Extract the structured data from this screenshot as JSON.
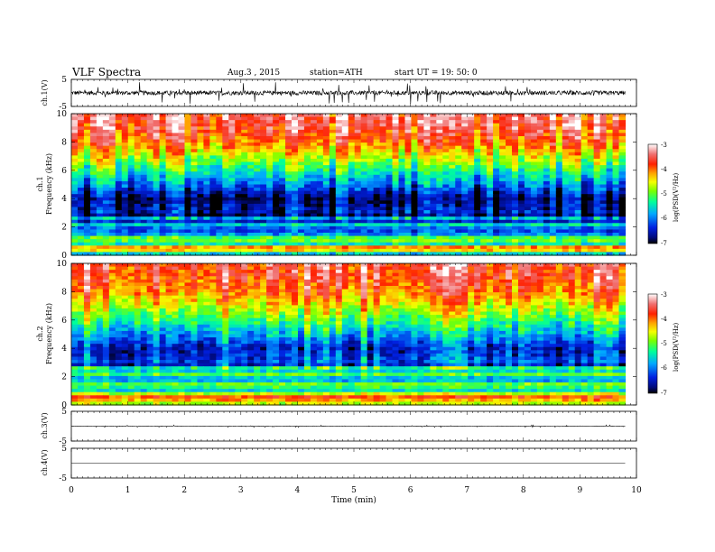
{
  "header": {
    "title": "VLF  Spectra",
    "date": "Aug.3  , 2015",
    "station": "station=ATH",
    "start_time": "start  UT =   19: 50: 0"
  },
  "colors": {
    "spectrogram_scale": [
      "#000000",
      "#000a7a",
      "#0020e0",
      "#00a8ff",
      "#00ff9a",
      "#7aff00",
      "#f5ff00",
      "#ffa000",
      "#ff2000",
      "#f07070",
      "#ffffff"
    ]
  },
  "chart_data": [
    {
      "type": "line",
      "panel": "ch1-waveform",
      "ylabel": "ch.1(V)",
      "yticks": [
        "5",
        "-5"
      ],
      "ylim": [
        -5,
        5
      ],
      "xlim": [
        0,
        10
      ],
      "data_end_min": 9.8,
      "baseline": 0.0,
      "noise_amplitude": 0.8,
      "spike_amplitude": 4.0
    },
    {
      "type": "heatmap",
      "panel": "ch1-spectrogram",
      "ylabel": "ch.1\nFrequency  (kHz)",
      "yticks": [
        "0",
        "2",
        "4",
        "6",
        "8",
        "10"
      ],
      "ylim": [
        0,
        10
      ],
      "xlim": [
        0,
        10
      ],
      "data_end_min": 9.8,
      "color_range": [
        -7,
        -3
      ],
      "colorbar_label": "log(PSD(V²/Hz)",
      "colorbar_ticks": [
        "-3",
        "-4",
        "-5",
        "-6",
        "-7"
      ],
      "logPSD_profile": [
        {
          "f": 0.0,
          "v": -5.3
        },
        {
          "f": 0.5,
          "v": -3.6
        },
        {
          "f": 1.0,
          "v": -5.6
        },
        {
          "f": 2.0,
          "v": -6.0
        },
        {
          "f": 3.0,
          "v": -6.5
        },
        {
          "f": 4.0,
          "v": -6.8
        },
        {
          "f": 5.0,
          "v": -6.0
        },
        {
          "f": 6.0,
          "v": -5.3
        },
        {
          "f": 7.0,
          "v": -4.6
        },
        {
          "f": 8.0,
          "v": -4.0
        },
        {
          "f": 9.0,
          "v": -3.6
        },
        {
          "f": 10.0,
          "v": -3.5
        }
      ]
    },
    {
      "type": "heatmap",
      "panel": "ch2-spectrogram",
      "ylabel": "ch.2\nFrequency  (kHz)",
      "yticks": [
        "0",
        "2",
        "4",
        "6",
        "8",
        "10"
      ],
      "ylim": [
        0,
        10
      ],
      "xlim": [
        0,
        10
      ],
      "data_end_min": 9.8,
      "color_range": [
        -7,
        -3
      ],
      "colorbar_label": "log(PSD(V²/Hz)",
      "colorbar_ticks": [
        "-3",
        "-4",
        "-5",
        "-6",
        "-7"
      ],
      "logPSD_profile": [
        {
          "f": 0.0,
          "v": -4.6
        },
        {
          "f": 0.5,
          "v": -4.2
        },
        {
          "f": 1.0,
          "v": -4.9
        },
        {
          "f": 2.0,
          "v": -5.5
        },
        {
          "f": 3.0,
          "v": -6.0
        },
        {
          "f": 4.0,
          "v": -6.3
        },
        {
          "f": 5.0,
          "v": -5.6
        },
        {
          "f": 6.0,
          "v": -5.0
        },
        {
          "f": 7.0,
          "v": -4.4
        },
        {
          "f": 8.0,
          "v": -3.9
        },
        {
          "f": 9.0,
          "v": -3.6
        },
        {
          "f": 10.0,
          "v": -3.5
        }
      ]
    },
    {
      "type": "line",
      "panel": "ch3-waveform",
      "ylabel": "ch.3(V)",
      "yticks": [
        "5",
        "-5"
      ],
      "ylim": [
        -5,
        5
      ],
      "xlim": [
        0,
        10
      ],
      "data_end_min": 9.8,
      "baseline": 0.0,
      "noise_amplitude": 0.08,
      "spike_amplitude": 0.4
    },
    {
      "type": "line",
      "panel": "ch4-waveform",
      "ylabel": "ch.4(V)",
      "yticks": [
        "5",
        "-5"
      ],
      "ylim": [
        -5,
        5
      ],
      "xlim": [
        0,
        10
      ],
      "data_end_min": 9.8,
      "baseline": 0.0,
      "noise_amplitude": 0.0,
      "spike_amplitude": 0.0
    }
  ],
  "x_axis": {
    "label": "Time  (min)",
    "ticks": [
      "0",
      "1",
      "2",
      "3",
      "4",
      "5",
      "6",
      "7",
      "8",
      "9",
      "10"
    ]
  }
}
